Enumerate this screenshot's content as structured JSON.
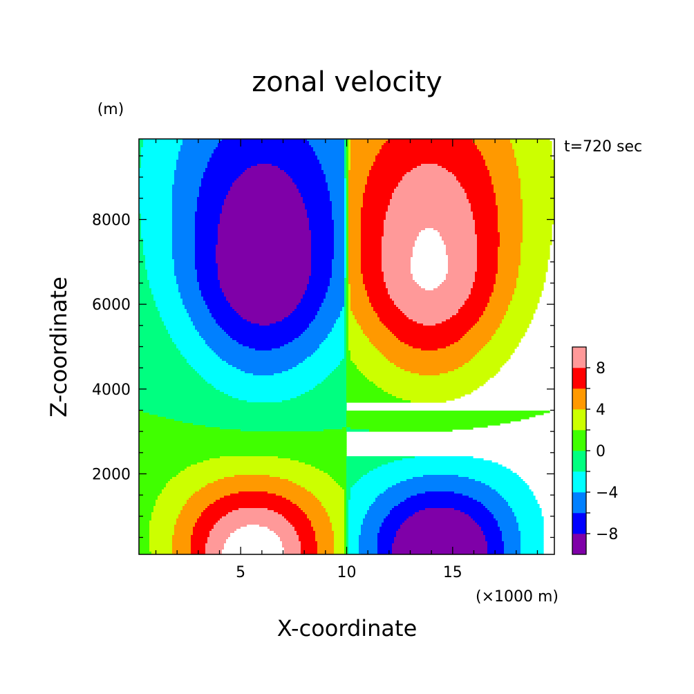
{
  "chart_data": {
    "type": "heatmap",
    "title": "zonal velocity",
    "time_label": "t=720 sec",
    "xlabel": "X-coordinate",
    "xunit": "(×1000 m)",
    "ylabel": "Z-coordinate",
    "yunit": "(m)",
    "xlim": [
      0.2,
      19.8
    ],
    "ylim": [
      100,
      9900
    ],
    "x_ticks": [
      5,
      10,
      15
    ],
    "y_ticks": [
      2000,
      4000,
      6000,
      8000
    ],
    "colorbar": {
      "levels": [
        -10,
        -8,
        -6,
        -4,
        -2,
        0,
        2,
        4,
        6,
        8,
        10
      ],
      "tick_labels": [
        {
          "value": 8,
          "label": "8"
        },
        {
          "value": 4,
          "label": "4"
        },
        {
          "value": 0,
          "label": "0"
        },
        {
          "value": -4,
          "label": "−4"
        },
        {
          "value": -8,
          "label": "−8"
        }
      ],
      "colors": [
        "#7f00a8",
        "#0000ff",
        "#0080ff",
        "#00ffff",
        "#00ff80",
        "#40ff00",
        "#ccff00",
        "#ff9900",
        "#ff0000",
        "#ff9999"
      ],
      "above_max_color": "#ffffff"
    }
  }
}
